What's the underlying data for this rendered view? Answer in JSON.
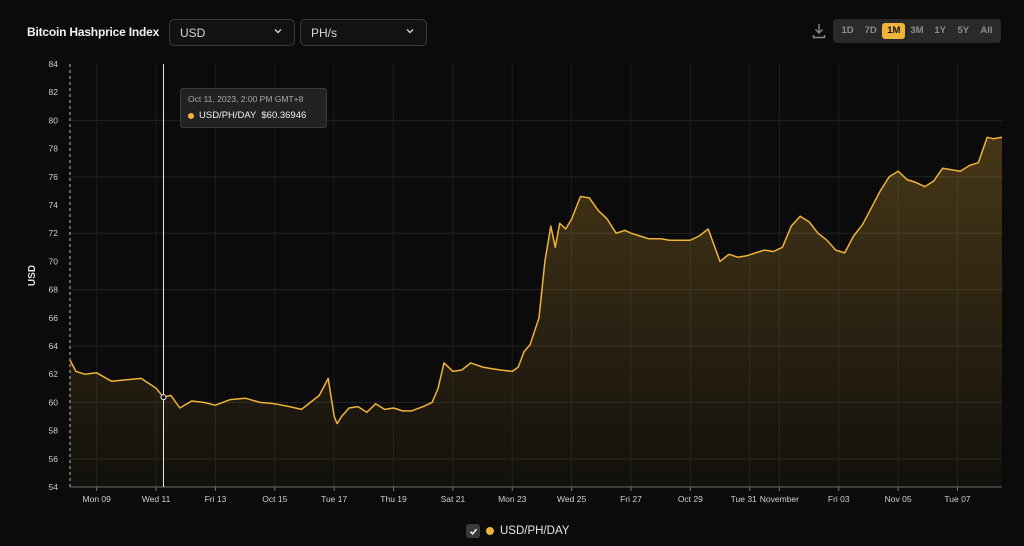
{
  "header": {
    "title": "Bitcoin Hashprice Index",
    "currency_select": "USD",
    "unit_select": "PH/s",
    "download_icon": "download-icon",
    "ranges": [
      "1D",
      "7D",
      "1M",
      "3M",
      "1Y",
      "5Y",
      "All"
    ],
    "active_range": "1M"
  },
  "tooltip": {
    "date": "Oct 11, 2023, 2:00 PM GMT+8",
    "series": "USD/PH/DAY",
    "value": "$60.36946"
  },
  "legend": {
    "label": "USD/PH/DAY",
    "checked": true
  },
  "colors": {
    "line": "#f0b33a",
    "background": "#0b0b0b",
    "grid": "#262626"
  },
  "chart_data": {
    "type": "area",
    "title": "",
    "xlabel": "",
    "ylabel": "USD",
    "ylim": [
      54,
      84
    ],
    "yticks": [
      54,
      56,
      58,
      60,
      62,
      64,
      66,
      68,
      70,
      72,
      74,
      76,
      78,
      80,
      82,
      84
    ],
    "x_tick_labels": [
      "Mon 09",
      "Wed 11",
      "Fri 13",
      "Oct 15",
      "Tue 17",
      "Thu 19",
      "Sat 21",
      "Mon 23",
      "Wed 25",
      "Fri 27",
      "Oct 29",
      "Tue 31",
      "November",
      "Fri 03",
      "Nov 05",
      "Tue 07"
    ],
    "x_tick_days": [
      9,
      11,
      13,
      15,
      17,
      19,
      21,
      23,
      25,
      27,
      29,
      31,
      32,
      34,
      36,
      38
    ],
    "x_range_days": [
      8.1,
      39.5
    ],
    "grid": true,
    "legend_position": "bottom",
    "series": [
      {
        "name": "USD/PH/DAY",
        "x_days": [
          8.1,
          8.3,
          8.6,
          9.0,
          9.5,
          10.0,
          10.5,
          11.0,
          11.25,
          11.5,
          11.8,
          12.2,
          12.6,
          13.0,
          13.5,
          14.0,
          14.5,
          15.0,
          15.5,
          15.9,
          16.2,
          16.5,
          16.8,
          17.0,
          17.1,
          17.25,
          17.5,
          17.8,
          18.1,
          18.4,
          18.7,
          19.0,
          19.3,
          19.6,
          20.0,
          20.3,
          20.5,
          20.7,
          21.0,
          21.3,
          21.6,
          22.0,
          22.3,
          22.6,
          23.0,
          23.2,
          23.4,
          23.6,
          23.9,
          24.1,
          24.3,
          24.45,
          24.6,
          24.8,
          25.0,
          25.3,
          25.6,
          25.9,
          26.2,
          26.5,
          26.8,
          27.0,
          27.3,
          27.6,
          28.0,
          28.3,
          28.6,
          29.0,
          29.3,
          29.6,
          30.0,
          30.3,
          30.6,
          30.9,
          31.2,
          31.5,
          31.8,
          32.1,
          32.4,
          32.7,
          33.0,
          33.3,
          33.6,
          33.9,
          34.2,
          34.5,
          34.8,
          35.1,
          35.4,
          35.7,
          36.0,
          36.3,
          36.6,
          36.9,
          37.2,
          37.5,
          37.8,
          38.1,
          38.4,
          38.7,
          39.0,
          39.2,
          39.5
        ],
        "values": [
          63.0,
          62.2,
          62.0,
          62.1,
          61.5,
          61.6,
          61.7,
          61.0,
          60.37,
          60.5,
          59.6,
          60.1,
          60.0,
          59.8,
          60.2,
          60.3,
          60.0,
          59.9,
          59.7,
          59.5,
          60.0,
          60.5,
          61.7,
          59.0,
          58.5,
          59.0,
          59.6,
          59.7,
          59.3,
          59.9,
          59.5,
          59.6,
          59.4,
          59.4,
          59.7,
          60.0,
          61.0,
          62.8,
          62.2,
          62.3,
          62.8,
          62.5,
          62.4,
          62.3,
          62.2,
          62.5,
          63.6,
          64.1,
          66.0,
          70.0,
          72.5,
          71.0,
          72.7,
          72.3,
          73.0,
          74.6,
          74.5,
          73.6,
          73.0,
          72.0,
          72.2,
          72.0,
          71.8,
          71.6,
          71.6,
          71.5,
          71.5,
          71.5,
          71.8,
          72.3,
          70.0,
          70.5,
          70.3,
          70.4,
          70.6,
          70.8,
          70.7,
          71.0,
          72.5,
          73.2,
          72.8,
          72.0,
          71.5,
          70.8,
          70.6,
          71.8,
          72.6,
          73.8,
          75.0,
          76.0,
          76.4,
          75.8,
          75.6,
          75.3,
          75.7,
          76.6,
          76.5,
          76.4,
          76.8,
          77.0,
          78.8,
          78.7,
          78.8
        ]
      }
    ]
  }
}
